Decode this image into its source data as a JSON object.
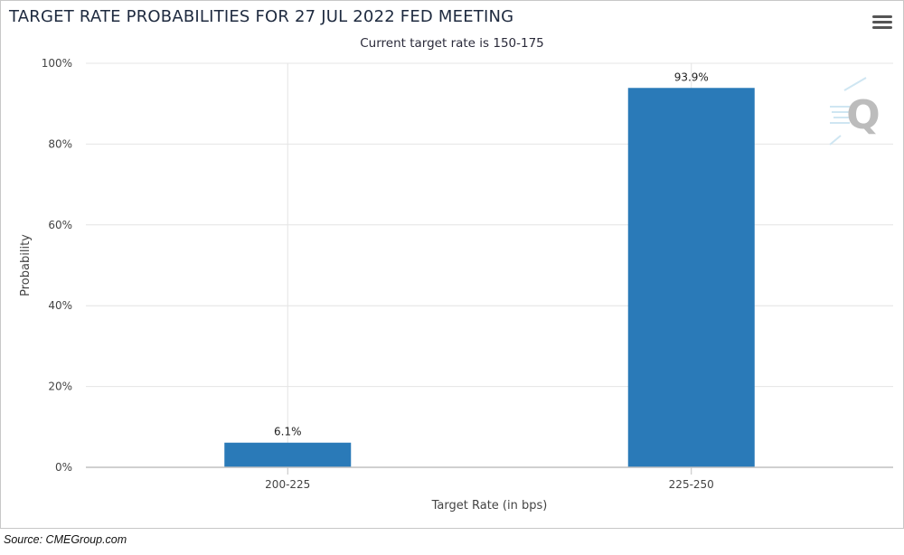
{
  "header": {
    "title": "TARGET RATE PROBABILITIES FOR 27 JUL 2022 FED MEETING",
    "subtitle": "Current target rate is 150-175",
    "menu_icon": "hamburger-menu-icon"
  },
  "footer": {
    "source": "Source:  CMEGroup.com"
  },
  "logo": {
    "letter": "Q",
    "icon": "q-logo-icon"
  },
  "colors": {
    "bar": "#2a7ab8",
    "grid": "#e4e4e4",
    "axis": "#c0c0c0"
  },
  "chart_data": {
    "type": "bar",
    "title": "TARGET RATE PROBABILITIES FOR 27 JUL 2022 FED MEETING",
    "subtitle": "Current target rate is 150-175",
    "xlabel": "Target Rate (in bps)",
    "ylabel": "Probability",
    "categories": [
      "200-225",
      "225-250"
    ],
    "values": [
      6.1,
      93.9
    ],
    "data_labels": [
      "6.1%",
      "93.9%"
    ],
    "ylim": [
      0,
      100
    ],
    "yticks": [
      0,
      20,
      40,
      60,
      80,
      100
    ],
    "ytick_labels": [
      "0%",
      "20%",
      "40%",
      "60%",
      "80%",
      "100%"
    ],
    "grid": true,
    "legend": "none"
  }
}
